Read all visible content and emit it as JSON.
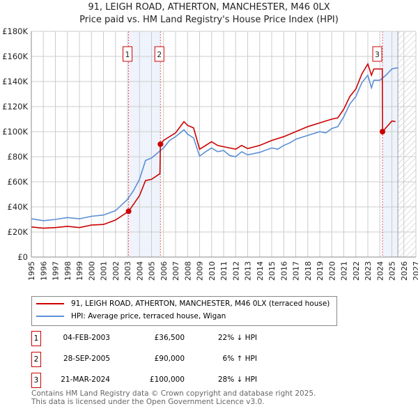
{
  "title": "91, LEIGH ROAD, ATHERTON, MANCHESTER, M46 0LX",
  "subtitle": "Price paid vs. HM Land Registry's House Price Index (HPI)",
  "chart_data": {
    "type": "line",
    "xlim": [
      1995,
      2027
    ],
    "ylim": [
      0,
      180000
    ],
    "y_ticks": [
      {
        "v": 0,
        "label": "£0"
      },
      {
        "v": 20000,
        "label": "£20K"
      },
      {
        "v": 40000,
        "label": "£40K"
      },
      {
        "v": 60000,
        "label": "£60K"
      },
      {
        "v": 80000,
        "label": "£80K"
      },
      {
        "v": 100000,
        "label": "£100K"
      },
      {
        "v": 120000,
        "label": "£120K"
      },
      {
        "v": 140000,
        "label": "£140K"
      },
      {
        "v": 160000,
        "label": "£160K"
      },
      {
        "v": 180000,
        "label": "£180K"
      }
    ],
    "x_ticks": [
      "1995",
      "1996",
      "1997",
      "1998",
      "1999",
      "2000",
      "2001",
      "2002",
      "2003",
      "2004",
      "2005",
      "2006",
      "2007",
      "2008",
      "2009",
      "2010",
      "2011",
      "2012",
      "2013",
      "2014",
      "2015",
      "2016",
      "2017",
      "2018",
      "2019",
      "2020",
      "2021",
      "2022",
      "2023",
      "2024",
      "2025",
      "2026",
      "2027"
    ],
    "series": [
      {
        "name": "91, LEIGH ROAD, ATHERTON, MANCHESTER, M46 0LX (terraced house)",
        "color": "#cc0000",
        "points": [
          [
            1995,
            24000
          ],
          [
            1996,
            23000
          ],
          [
            1997,
            23500
          ],
          [
            1998,
            24500
          ],
          [
            1999,
            23500
          ],
          [
            2000,
            25500
          ],
          [
            2001,
            26000
          ],
          [
            2002,
            29500
          ],
          [
            2003.1,
            36500
          ],
          [
            2004,
            49000
          ],
          [
            2004.5,
            61000
          ],
          [
            2005,
            62000
          ],
          [
            2005.7,
            66500
          ],
          [
            2005.74,
            90000
          ],
          [
            2006,
            93000
          ],
          [
            2007,
            99000
          ],
          [
            2007.7,
            108000
          ],
          [
            2008,
            105000
          ],
          [
            2008.5,
            103000
          ],
          [
            2009,
            86000
          ],
          [
            2010,
            92000
          ],
          [
            2010.5,
            89000
          ],
          [
            2011,
            88000
          ],
          [
            2012,
            86000
          ],
          [
            2012.5,
            89000
          ],
          [
            2013,
            86500
          ],
          [
            2014,
            89000
          ],
          [
            2015,
            93000
          ],
          [
            2016,
            96000
          ],
          [
            2017,
            100000
          ],
          [
            2018,
            104000
          ],
          [
            2019,
            107000
          ],
          [
            2020,
            110000
          ],
          [
            2020.5,
            111000
          ],
          [
            2021,
            118000
          ],
          [
            2021.5,
            128000
          ],
          [
            2022,
            134000
          ],
          [
            2022.5,
            146000
          ],
          [
            2023,
            154000
          ],
          [
            2023.3,
            145000
          ],
          [
            2023.5,
            150000
          ],
          [
            2024.2,
            150000
          ],
          [
            2024.22,
            100000
          ],
          [
            2024.5,
            103000
          ],
          [
            2025,
            108500
          ],
          [
            2025.3,
            108000
          ]
        ]
      },
      {
        "name": "HPI: Average price, terraced house, Wigan",
        "color": "#5b8fd4",
        "points": [
          [
            1995,
            30500
          ],
          [
            1996,
            29000
          ],
          [
            1997,
            30000
          ],
          [
            1998,
            31500
          ],
          [
            1999,
            30500
          ],
          [
            2000,
            32500
          ],
          [
            2001,
            33500
          ],
          [
            2002,
            37000
          ],
          [
            2003,
            46000
          ],
          [
            2003.5,
            53000
          ],
          [
            2004,
            62000
          ],
          [
            2004.5,
            77000
          ],
          [
            2005,
            79000
          ],
          [
            2005.75,
            85000
          ],
          [
            2006,
            87000
          ],
          [
            2006.5,
            93000
          ],
          [
            2007,
            96000
          ],
          [
            2007.7,
            101500
          ],
          [
            2008,
            98000
          ],
          [
            2008.5,
            95000
          ],
          [
            2009,
            80500
          ],
          [
            2009.5,
            84000
          ],
          [
            2010,
            87000
          ],
          [
            2010.5,
            84000
          ],
          [
            2011,
            85000
          ],
          [
            2011.5,
            81000
          ],
          [
            2012,
            80000
          ],
          [
            2012.5,
            84000
          ],
          [
            2013,
            81500
          ],
          [
            2014,
            83500
          ],
          [
            2015,
            87000
          ],
          [
            2015.5,
            86000
          ],
          [
            2016,
            89000
          ],
          [
            2016.5,
            91000
          ],
          [
            2017,
            94000
          ],
          [
            2018,
            97000
          ],
          [
            2019,
            100000
          ],
          [
            2019.5,
            99000
          ],
          [
            2020,
            102500
          ],
          [
            2020.5,
            104000
          ],
          [
            2021,
            112000
          ],
          [
            2021.5,
            122000
          ],
          [
            2022,
            128000
          ],
          [
            2022.5,
            139000
          ],
          [
            2023,
            145000
          ],
          [
            2023.3,
            135000
          ],
          [
            2023.5,
            141000
          ],
          [
            2024,
            141000
          ],
          [
            2024.5,
            145000
          ],
          [
            2025,
            150000
          ],
          [
            2025.5,
            151000
          ]
        ]
      }
    ],
    "sales": [
      {
        "label": "1",
        "x": 2003.09,
        "y": 36500
      },
      {
        "label": "2",
        "x": 2005.74,
        "y": 90000
      },
      {
        "label": "3",
        "x": 2024.22,
        "y": 100000
      }
    ],
    "shaded_periods": [
      [
        2003.09,
        2005.74
      ],
      [
        2024.22,
        2025.5
      ]
    ],
    "forecast_from": 2025.5
  },
  "legend": {
    "property": "91, LEIGH ROAD, ATHERTON, MANCHESTER, M46 0LX (terraced house)",
    "hpi": "HPI: Average price, terraced house, Wigan"
  },
  "transactions": [
    {
      "num": "1",
      "date": "04-FEB-2003",
      "price": "£36,500",
      "hpi": "22% ↓ HPI"
    },
    {
      "num": "2",
      "date": "28-SEP-2005",
      "price": "£90,000",
      "hpi": "6% ↑ HPI"
    },
    {
      "num": "3",
      "date": "21-MAR-2024",
      "price": "£100,000",
      "hpi": "28% ↓ HPI"
    }
  ],
  "footer": {
    "line1": "Contains HM Land Registry data © Crown copyright and database right 2025.",
    "line2": "This data is licensed under the Open Government Licence v3.0."
  }
}
